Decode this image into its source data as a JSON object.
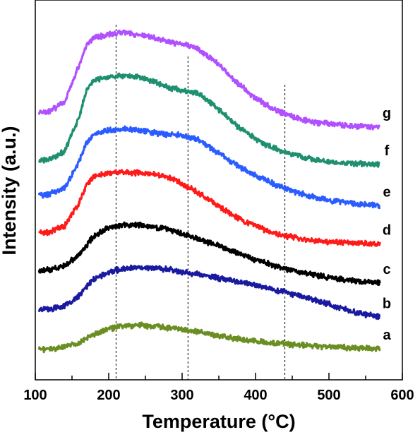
{
  "chart_data": {
    "type": "line",
    "xlabel": "Temperature (°C)",
    "ylabel": "Intensity (a.u.)",
    "xlim": [
      100,
      600
    ],
    "x_ticks": [
      "100",
      "200",
      "300",
      "400",
      "500",
      "600"
    ],
    "y_ticks_labeled": false,
    "grid": false,
    "legend": "none",
    "reference_lines": [
      210,
      308,
      440
    ],
    "x": [
      105,
      120,
      140,
      160,
      170,
      180,
      200,
      220,
      240,
      260,
      280,
      300,
      320,
      340,
      360,
      380,
      400,
      420,
      440,
      460,
      480,
      500,
      520,
      540,
      560,
      570
    ],
    "series": [
      {
        "name": "a",
        "color": "#6b8e23",
        "values": [
          0,
          0.5,
          3,
          10,
          16,
          22,
          30,
          34,
          35,
          34,
          32,
          29,
          26,
          22,
          18,
          15,
          12,
          10,
          8,
          6,
          5,
          4,
          3,
          2,
          1.5,
          1
        ]
      },
      {
        "name": "b",
        "color": "#1a1aa0",
        "values": [
          58,
          59,
          63,
          78,
          92,
          103,
          113,
          118,
          120,
          119,
          117,
          113,
          110,
          106,
          102,
          98,
          94,
          89,
          84,
          78,
          72,
          66,
          59,
          53,
          49,
          47
        ]
      },
      {
        "name": "c",
        "color": "#000000",
        "values": [
          115,
          117,
          122,
          138,
          152,
          166,
          178,
          182,
          182,
          179,
          175,
          169,
          162,
          155,
          147,
          139,
          131,
          124,
          118,
          113,
          109,
          105,
          102,
          100,
          98,
          97
        ]
      },
      {
        "name": "d",
        "color": "#ff1a1a",
        "values": [
          170,
          172,
          180,
          215,
          240,
          253,
          258,
          258,
          258,
          256,
          252,
          242,
          230,
          216,
          202,
          190,
          180,
          172,
          166,
          162,
          159,
          157,
          156,
          155,
          154,
          154
        ]
      },
      {
        "name": "e",
        "color": "#2a5cff",
        "values": [
          225,
          227,
          236,
          275,
          303,
          315,
          320,
          322,
          320,
          317,
          314,
          313,
          307,
          294,
          279,
          266,
          254,
          244,
          235,
          228,
          222,
          218,
          215,
          213,
          211,
          210
        ]
      },
      {
        "name": "f",
        "color": "#1e9070",
        "values": [
          275,
          278,
          290,
          340,
          380,
          393,
          398,
          400,
          398,
          392,
          383,
          378,
          375,
          360,
          340,
          322,
          307,
          296,
          288,
          282,
          277,
          274,
          272,
          271,
          270,
          270
        ]
      },
      {
        "name": "g",
        "color": "#b050ff",
        "values": [
          345,
          348,
          362,
          415,
          445,
          455,
          460,
          462,
          460,
          456,
          450,
          446,
          440,
          425,
          405,
          385,
          367,
          354,
          344,
          337,
          332,
          329,
          327,
          326,
          325,
          325
        ]
      }
    ]
  }
}
